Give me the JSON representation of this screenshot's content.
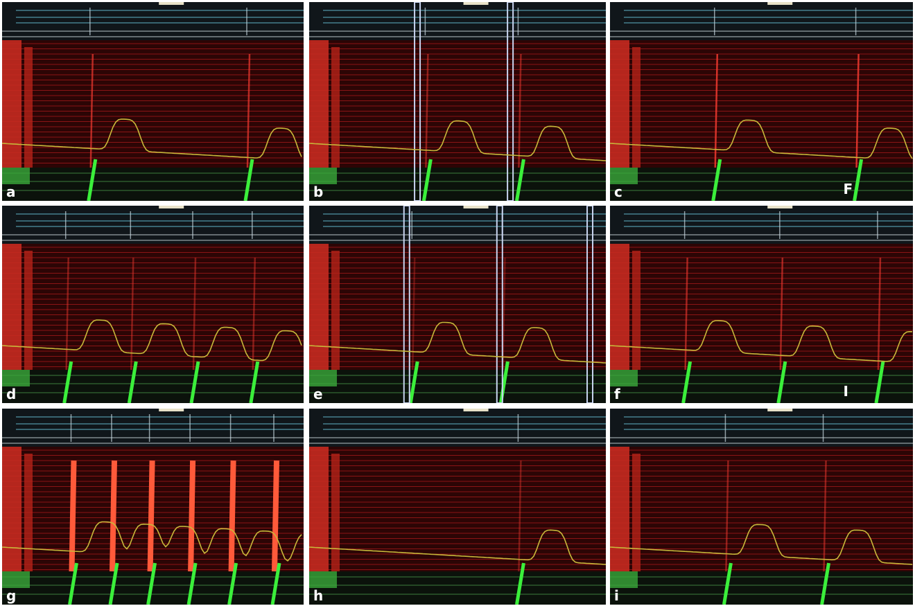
{
  "panels": [
    {
      "label": "a"
    },
    {
      "label": "b"
    },
    {
      "label": "c",
      "annotation": "F"
    },
    {
      "label": "d"
    },
    {
      "label": "e"
    },
    {
      "label": "f",
      "annotation": "I"
    },
    {
      "label": "g"
    },
    {
      "label": "h"
    },
    {
      "label": "i"
    }
  ]
}
